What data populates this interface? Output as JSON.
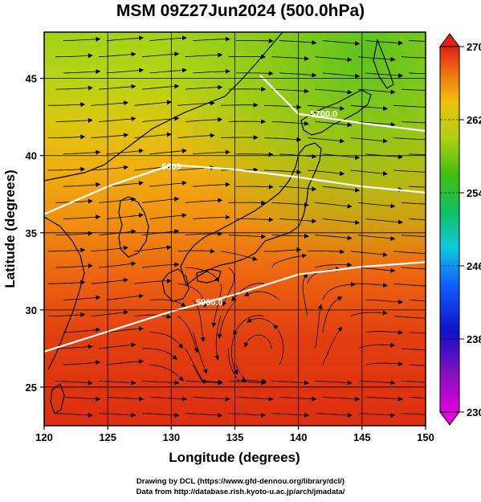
{
  "title": "MSM 09Z27Jun2024 (500.0hPa)",
  "xlabel": "Longitude (degrees)",
  "ylabel": "Latitude  (degrees)",
  "x_ticks": [
    "120",
    "125",
    "130",
    "135",
    "140",
    "145",
    "150"
  ],
  "y_ticks": [
    "25",
    "30",
    "35",
    "40",
    "45"
  ],
  "colorbar": {
    "min": 230,
    "max": 270,
    "ticks": [
      "230",
      "238",
      "246",
      "254",
      "262",
      "270"
    ]
  },
  "contour_labels": [
    "5900.0",
    "5800",
    "5700.0"
  ],
  "credits": {
    "line1": "Drawing by DCL (https://www.gfd-dennou.org/library/dcl/)",
    "line2": "Data from http://database.rish.kyoto-u.ac.jp/arch/jmadata/"
  },
  "map": {
    "lon_range": [
      120,
      150
    ],
    "lat_range": [
      22.5,
      48
    ],
    "variable": "temperature (K) with wind streamlines and geopotential height contours",
    "colors": {
      "warm": "#e03010",
      "mid": "#f0a010",
      "cool": "#7cc81e",
      "contour": "#ffffff"
    }
  },
  "chart_data": {
    "type": "heatmap",
    "title": "MSM 09Z27Jun2024 (500.0hPa)",
    "xlabel": "Longitude (degrees)",
    "ylabel": "Latitude  (degrees)",
    "xlim": [
      120,
      150
    ],
    "ylim": [
      22.5,
      48
    ],
    "colorbar_range": [
      230,
      270
    ],
    "contours": [
      {
        "label": "5900.0",
        "points": [
          [
            120,
            27.3
          ],
          [
            125,
            28.6
          ],
          [
            130,
            29.9
          ],
          [
            135,
            31.0
          ],
          [
            140,
            32.3
          ],
          [
            145,
            32.8
          ],
          [
            150,
            33.1
          ]
        ]
      },
      {
        "label": "5800",
        "points": [
          [
            120,
            36.2
          ],
          [
            125,
            38.0
          ],
          [
            130,
            39.4
          ],
          [
            135,
            39.1
          ],
          [
            140,
            38.6
          ],
          [
            145,
            38.0
          ],
          [
            150,
            37.6
          ]
        ]
      },
      {
        "label": "5700.0",
        "points": [
          [
            137,
            45.2
          ],
          [
            140,
            42.7
          ],
          [
            145,
            42.1
          ],
          [
            150,
            41.6
          ]
        ]
      }
    ]
  }
}
